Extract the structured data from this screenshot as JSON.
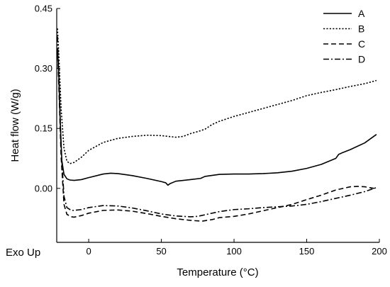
{
  "chart_data": {
    "type": "line",
    "xlabel": "Temperature (°C)",
    "ylabel": "Heat flow (W/g)",
    "xlim": [
      -22,
      200
    ],
    "ylim": [
      -0.135,
      0.45
    ],
    "xticks": [
      0,
      50,
      100,
      150,
      200
    ],
    "xtick_labels": [
      "0",
      "50",
      "100",
      "150",
      "200"
    ],
    "yticks": [
      0.0,
      0.15,
      0.3,
      0.45
    ],
    "ytick_labels": [
      "0.00",
      "0.15",
      "0.30",
      "0.45"
    ],
    "annotation": "Exo Up",
    "legend_position": "top-right",
    "grid": false,
    "series": [
      {
        "name": "A",
        "style": "solid",
        "x": [
          -21.5,
          -20.5,
          -19.5,
          -18.5,
          -17,
          -15,
          -13,
          -10,
          -5,
          0,
          10,
          15,
          20,
          30,
          40,
          50,
          53,
          54.5,
          56,
          60,
          70,
          77,
          80,
          90,
          100,
          110,
          120,
          130,
          140,
          150,
          160,
          170,
          172,
          175,
          180,
          190,
          198
        ],
        "y": [
          0.345,
          0.28,
          0.16,
          0.07,
          0.035,
          0.024,
          0.021,
          0.02,
          0.022,
          0.027,
          0.036,
          0.038,
          0.037,
          0.032,
          0.025,
          0.017,
          0.014,
          0.008,
          0.012,
          0.018,
          0.022,
          0.025,
          0.03,
          0.035,
          0.036,
          0.036,
          0.037,
          0.039,
          0.043,
          0.05,
          0.06,
          0.075,
          0.085,
          0.09,
          0.097,
          0.114,
          0.135
        ]
      },
      {
        "name": "B",
        "style": "dotted",
        "x": [
          -21.5,
          -20.5,
          -19,
          -17,
          -15,
          -13,
          -10,
          -5,
          0,
          10,
          20,
          30,
          40,
          50,
          60,
          65,
          70,
          75,
          80,
          85,
          90,
          100,
          110,
          120,
          130,
          140,
          150,
          160,
          170,
          180,
          190,
          198
        ],
        "y": [
          0.4,
          0.33,
          0.2,
          0.1,
          0.068,
          0.062,
          0.065,
          0.078,
          0.095,
          0.115,
          0.125,
          0.13,
          0.133,
          0.132,
          0.128,
          0.13,
          0.137,
          0.142,
          0.148,
          0.16,
          0.168,
          0.18,
          0.19,
          0.2,
          0.21,
          0.22,
          0.232,
          0.24,
          0.247,
          0.255,
          0.262,
          0.27
        ]
      },
      {
        "name": "C",
        "style": "dashed",
        "x": [
          -21.5,
          -20.5,
          -19,
          -17,
          -15,
          -12,
          -10,
          -5,
          0,
          10,
          20,
          30,
          40,
          50,
          60,
          70,
          78,
          85,
          90,
          100,
          110,
          120,
          130,
          140,
          150,
          160,
          170,
          180,
          185,
          190,
          198
        ],
        "y": [
          0.35,
          0.25,
          0.08,
          -0.04,
          -0.065,
          -0.071,
          -0.072,
          -0.068,
          -0.062,
          -0.055,
          -0.054,
          -0.057,
          -0.063,
          -0.07,
          -0.076,
          -0.08,
          -0.082,
          -0.078,
          -0.073,
          -0.07,
          -0.064,
          -0.056,
          -0.048,
          -0.04,
          -0.028,
          -0.017,
          -0.004,
          0.004,
          0.005,
          0.004,
          -0.001
        ]
      },
      {
        "name": "D",
        "style": "dashdot",
        "x": [
          -21.5,
          -20.5,
          -19,
          -17,
          -15,
          -12,
          -10,
          -5,
          0,
          10,
          20,
          30,
          40,
          50,
          60,
          70,
          75,
          80,
          90,
          100,
          110,
          120,
          130,
          140,
          150,
          160,
          170,
          180,
          190,
          198
        ],
        "y": [
          0.38,
          0.27,
          0.1,
          -0.02,
          -0.048,
          -0.055,
          -0.055,
          -0.053,
          -0.048,
          -0.043,
          -0.044,
          -0.049,
          -0.056,
          -0.064,
          -0.069,
          -0.071,
          -0.07,
          -0.066,
          -0.058,
          -0.053,
          -0.051,
          -0.048,
          -0.046,
          -0.044,
          -0.04,
          -0.033,
          -0.025,
          -0.017,
          -0.008,
          0.002
        ]
      }
    ]
  }
}
